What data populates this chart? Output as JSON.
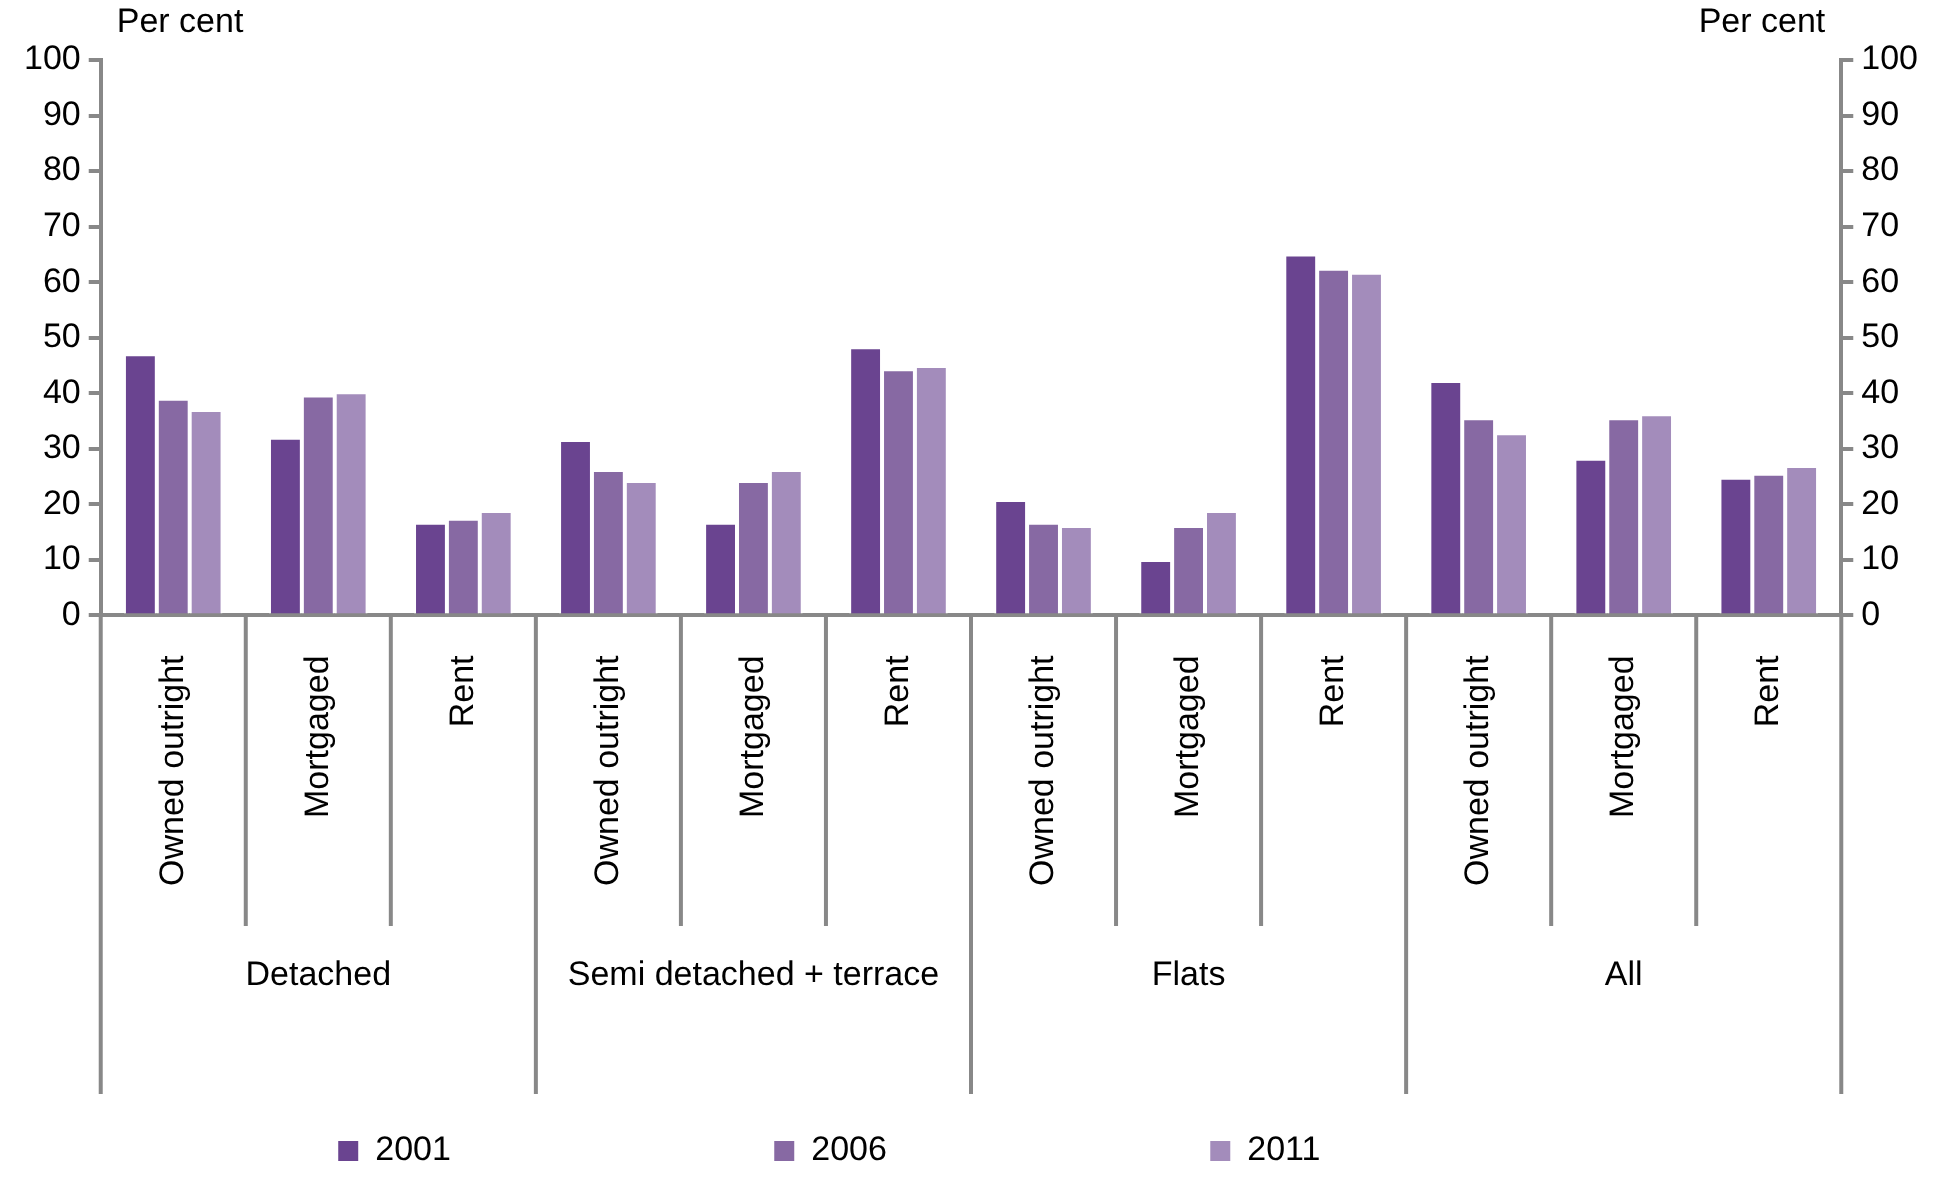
{
  "chart_data": {
    "type": "bar",
    "ylabel": "Per cent",
    "y2label": "Per cent",
    "categories": [
      "Owned outright",
      "Mortgaged",
      "Rent",
      "Owned outright",
      "Mortgaged",
      "Rent",
      "Owned outright",
      "Mortgaged",
      "Rent",
      "Owned outright",
      "Mortgaged",
      "Rent"
    ],
    "annotations": [
      "Detached",
      "Semi detached + terrace",
      "Flats",
      "All"
    ],
    "series": [
      {
        "name": "2001",
        "color": "#6a4490",
        "values": [
          47,
          32,
          16.7,
          31.6,
          16.7,
          48.3,
          20.8,
          10,
          65,
          42.2,
          28.2,
          24.8
        ]
      },
      {
        "name": "2006",
        "color": "#8769a3",
        "values": [
          39,
          39.6,
          17.4,
          26.2,
          24.2,
          44.3,
          16.7,
          16.1,
          62.4,
          35.5,
          35.5,
          25.5
        ]
      },
      {
        "name": "2011",
        "color": "#a38cbb",
        "values": [
          37,
          40.2,
          18.8,
          24.2,
          26.2,
          44.9,
          16.1,
          18.8,
          61.7,
          32.8,
          36.2,
          26.9
        ]
      }
    ],
    "ylim": [
      0,
      100
    ],
    "yticks": [
      0,
      10,
      20,
      30,
      40,
      50,
      60,
      70,
      80,
      90,
      100
    ],
    "y2lim": [
      0,
      100
    ],
    "y2ticks": [
      0,
      10,
      20,
      30,
      40,
      50,
      60,
      70,
      80,
      90,
      100
    ],
    "legend": "bottom",
    "grid": false
  }
}
